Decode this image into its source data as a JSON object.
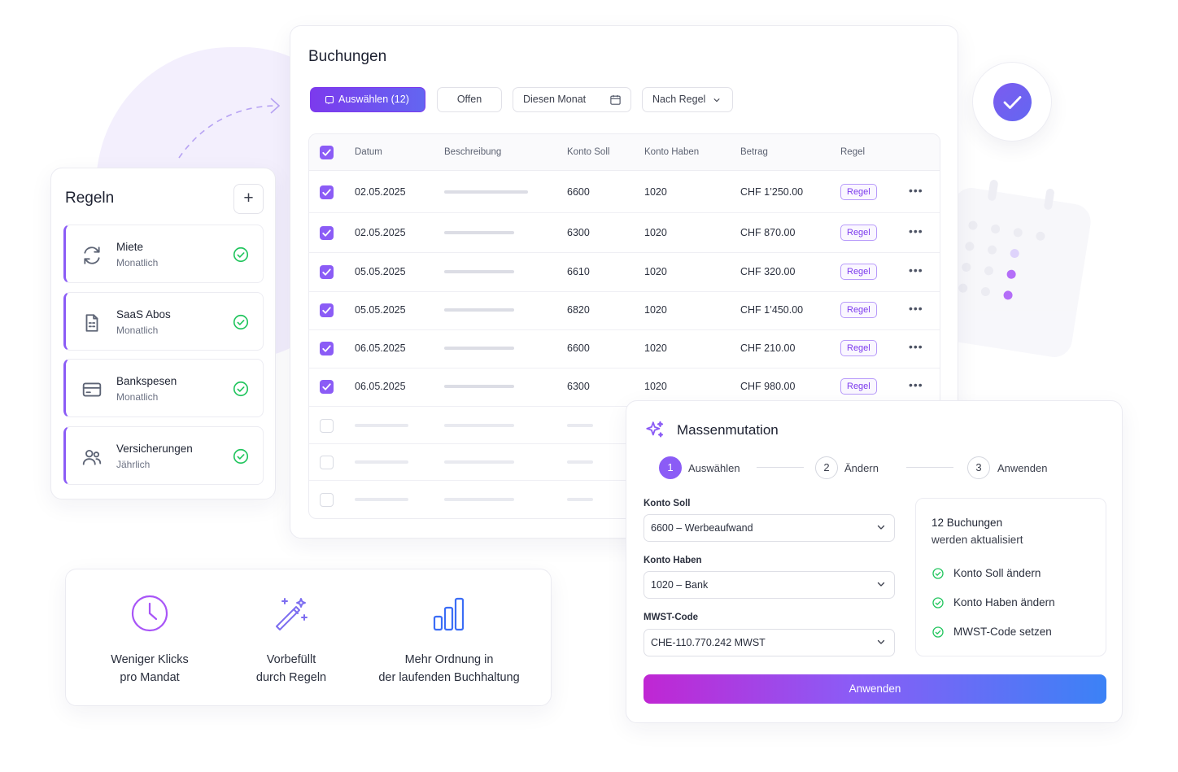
{
  "colors": {
    "accent": "#8b5cf6",
    "accent_dark": "#7c3aed",
    "success": "#22c55e",
    "gradient_start": "#c026d3",
    "gradient_end": "#3b82f6"
  },
  "regeln": {
    "title": "Regeln",
    "add_label": "+",
    "items": [
      {
        "name": "Miete",
        "freq": "Monatlich",
        "icon": "refresh-icon"
      },
      {
        "name": "SaaS Abos",
        "freq": "Monatlich",
        "icon": "document-icon"
      },
      {
        "name": "Bankspesen",
        "freq": "Monatlich",
        "icon": "credit-card-icon"
      },
      {
        "name": "Versicherungen",
        "freq": "Jährlich",
        "icon": "users-icon"
      }
    ]
  },
  "buchungen": {
    "title": "Buchungen",
    "filters": {
      "select": "Auswählen (12)",
      "open": "Offen",
      "month": "Diesen Monat",
      "rule": "Nach Regel"
    },
    "columns": [
      "Datum",
      "Beschreibung",
      "Konto Soll",
      "Konto Haben",
      "Betrag",
      "Regel"
    ],
    "rows": [
      {
        "date": "02.05.2025",
        "soll": "6600",
        "haben": "1020",
        "betrag": "CHF 1’250.00",
        "regel": "Regel"
      },
      {
        "date": "02.05.2025",
        "soll": "6300",
        "haben": "1020",
        "betrag": "CHF 870.00",
        "regel": "Regel"
      },
      {
        "date": "05.05.2025",
        "soll": "6610",
        "haben": "1020",
        "betrag": "CHF 320.00",
        "regel": "Regel"
      },
      {
        "date": "05.05.2025",
        "soll": "6820",
        "haben": "1020",
        "betrag": "CHF 1’450.00",
        "regel": "Regel"
      },
      {
        "date": "06.05.2025",
        "soll": "6600",
        "haben": "1020",
        "betrag": "CHF 210.00",
        "regel": "Regel"
      },
      {
        "date": "06.05.2025",
        "soll": "6300",
        "haben": "1020",
        "betrag": "CHF 980.00",
        "regel": "Regel"
      }
    ],
    "more_label": "•••"
  },
  "massenmutation": {
    "title": "Massenmutation",
    "steps": [
      {
        "num": "1",
        "label": "Auswählen"
      },
      {
        "num": "2",
        "label": "Ändern"
      },
      {
        "num": "3",
        "label": "Anwenden"
      }
    ],
    "fields": {
      "soll_label": "Konto Soll",
      "soll_value": "6600 – Werbeaufwand",
      "haben_label": "Konto Haben",
      "haben_value": "1020 – Bank",
      "mwst_label": "MWST-Code",
      "mwst_value": "CHE-110.770.242 MWST"
    },
    "summary": {
      "line1": "12 Buchungen",
      "line2": "werden aktualisiert",
      "items": [
        "Konto Soll ändern",
        "Konto Haben ändern",
        "MWST-Code setzen"
      ]
    },
    "apply_label": "Anwenden"
  },
  "features": [
    {
      "line1": "Weniger Klicks",
      "line2": "pro Mandat",
      "icon": "clock-icon"
    },
    {
      "line1": "Vorbefüllt",
      "line2": "durch Regeln",
      "icon": "magic-wand-icon"
    },
    {
      "line1": "Mehr Ordnung in",
      "line2": "der laufenden Buchhaltung",
      "icon": "bar-chart-icon"
    }
  ]
}
